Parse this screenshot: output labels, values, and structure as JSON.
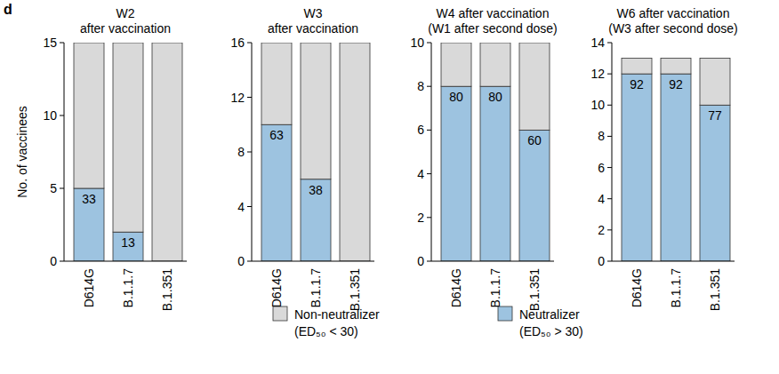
{
  "panel_label": "d",
  "chart_data": [
    {
      "type": "bar",
      "stacked": true,
      "title": [
        "W2",
        "after vaccination"
      ],
      "y_label": "No. of vaccinees",
      "legend": "bottom",
      "categories": [
        "D614G",
        "B.1.1.7",
        "B.1.351"
      ],
      "ylim": [
        0,
        15
      ],
      "yticks": [
        0,
        5,
        10,
        15
      ],
      "series": [
        {
          "name": "Neutralizer (ED₅₀ > 30)",
          "color": "#9dc3e0",
          "values": [
            5,
            2,
            0
          ],
          "percentages": [
            33,
            13,
            null
          ]
        },
        {
          "name": "Non-neutralizer (ED₅₀ < 30)",
          "color": "#d9d9d9",
          "values": [
            10,
            13,
            15
          ]
        }
      ]
    },
    {
      "type": "bar",
      "stacked": true,
      "title": [
        "W3",
        "after vaccination"
      ],
      "categories": [
        "D614G",
        "B.1.1.7",
        "B.1.351"
      ],
      "ylim": [
        0,
        16
      ],
      "yticks": [
        0,
        4,
        8,
        12,
        16
      ],
      "series": [
        {
          "name": "Neutralizer (ED₅₀ > 30)",
          "color": "#9dc3e0",
          "values": [
            10,
            6,
            0
          ],
          "percentages": [
            63,
            38,
            null
          ]
        },
        {
          "name": "Non-neutralizer (ED₅₀ < 30)",
          "color": "#d9d9d9",
          "values": [
            6,
            10,
            16
          ]
        }
      ]
    },
    {
      "type": "bar",
      "stacked": true,
      "title": [
        "W4 after vaccination",
        "(W1 after second dose)"
      ],
      "categories": [
        "D614G",
        "B.1.1.7",
        "B.1.351"
      ],
      "ylim": [
        0,
        10
      ],
      "yticks": [
        0,
        2,
        4,
        6,
        8,
        10
      ],
      "series": [
        {
          "name": "Neutralizer (ED₅₀ > 30)",
          "color": "#9dc3e0",
          "values": [
            8,
            8,
            6
          ],
          "percentages": [
            80,
            80,
            60
          ]
        },
        {
          "name": "Non-neutralizer (ED₅₀ < 30)",
          "color": "#d9d9d9",
          "values": [
            2,
            2,
            4
          ]
        }
      ]
    },
    {
      "type": "bar",
      "stacked": true,
      "title": [
        "W6 after vaccination",
        "(W3 after second dose)"
      ],
      "categories": [
        "D614G",
        "B.1.1.7",
        "B.1.351"
      ],
      "ylim": [
        0,
        14
      ],
      "yticks": [
        0,
        2,
        4,
        6,
        8,
        10,
        12,
        14
      ],
      "series": [
        {
          "name": "Neutralizer (ED₅₀ > 30)",
          "color": "#9dc3e0",
          "values": [
            12,
            12,
            10
          ],
          "percentages": [
            92,
            92,
            77
          ]
        },
        {
          "name": "Non-neutralizer (ED₅₀ < 30)",
          "color": "#d9d9d9",
          "values": [
            1,
            1,
            3
          ]
        }
      ]
    }
  ]
}
